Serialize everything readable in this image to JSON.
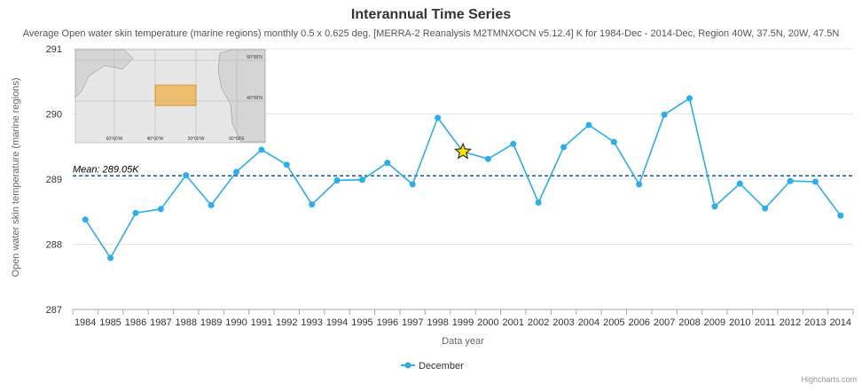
{
  "chart_data": {
    "type": "line",
    "title": "Interannual Time Series",
    "subtitle": "Average Open water skin temperature (marine regions) monthly 0.5 x 0.625 deg. [MERRA-2 Reanalysis M2TMNXOCN v5.12.4] K for 1984-Dec - 2014-Dec, Region 40W, 37.5N, 20W, 47.5N",
    "xlabel": "Data year",
    "ylabel": "Open water skin temperature (marine regions)",
    "ylim": [
      287,
      291
    ],
    "yticks": [
      "287",
      "288",
      "289",
      "290",
      "291"
    ],
    "grid": true,
    "legend_position": "bottom-center",
    "categories": [
      "1984",
      "1985",
      "1986",
      "1987",
      "1988",
      "1989",
      "1990",
      "1991",
      "1992",
      "1993",
      "1994",
      "1995",
      "1996",
      "1997",
      "1998",
      "1999",
      "2000",
      "2001",
      "2002",
      "2003",
      "2004",
      "2005",
      "2006",
      "2007",
      "2008",
      "2009",
      "2010",
      "2011",
      "2012",
      "2013",
      "2014"
    ],
    "series": [
      {
        "name": "December",
        "color": "#2daee8",
        "values": [
          288.38,
          287.79,
          288.48,
          288.54,
          289.06,
          288.6,
          289.11,
          289.45,
          289.22,
          288.61,
          288.98,
          288.99,
          289.25,
          288.92,
          289.94,
          289.42,
          289.31,
          289.54,
          288.64,
          289.49,
          289.83,
          289.57,
          288.92,
          289.99,
          290.24,
          288.58,
          288.93,
          288.55,
          288.97,
          288.96,
          288.44
        ]
      }
    ],
    "mean": {
      "value": 289.05,
      "label": "Mean: 289.05K",
      "color": "#1a5f99"
    },
    "highlight": {
      "category": "1999",
      "value": 289.42,
      "color": "#f5e400"
    },
    "credit": "Highcharts.com",
    "inset_map": {
      "lon_labels": [
        "60°00'W",
        "40°00'W",
        "20°00'W",
        "00°00'E"
      ],
      "lat_labels": [
        "60°00'N",
        "40°00'N"
      ],
      "region_color": "#f0a830"
    }
  }
}
